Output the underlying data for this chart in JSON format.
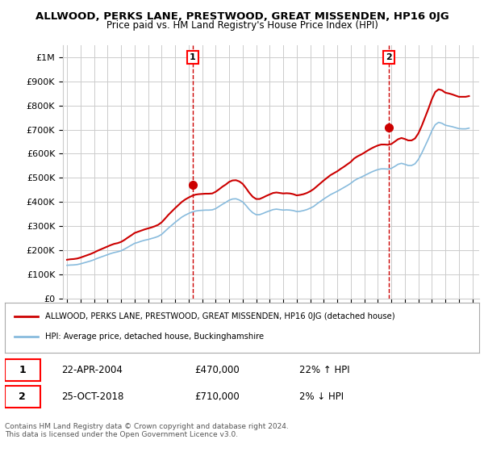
{
  "title": "ALLWOOD, PERKS LANE, PRESTWOOD, GREAT MISSENDEN, HP16 0JG",
  "subtitle": "Price paid vs. HM Land Registry's House Price Index (HPI)",
  "ylabel": "",
  "xlim_start": 1995,
  "xlim_end": 2025.5,
  "ylim": [
    0,
    1050000
  ],
  "yticks": [
    0,
    100000,
    200000,
    300000,
    400000,
    500000,
    600000,
    700000,
    800000,
    900000,
    1000000
  ],
  "ytick_labels": [
    "£0",
    "£100K",
    "£200K",
    "£300K",
    "£400K",
    "£500K",
    "£600K",
    "£700K",
    "£800K",
    "£900K",
    "£1M"
  ],
  "xticks": [
    1995,
    1996,
    1997,
    1998,
    1999,
    2000,
    2001,
    2002,
    2003,
    2004,
    2005,
    2006,
    2007,
    2008,
    2009,
    2010,
    2011,
    2012,
    2013,
    2014,
    2015,
    2016,
    2017,
    2018,
    2019,
    2020,
    2021,
    2022,
    2023,
    2024,
    2025
  ],
  "red_line_color": "#cc0000",
  "blue_line_color": "#88bbdd",
  "marker_color_red": "#cc0000",
  "marker_color_blue": "#88bbdd",
  "dashed_line_color": "#cc0000",
  "background_color": "#ffffff",
  "grid_color": "#cccccc",
  "sale1_x": 2004.31,
  "sale1_y": 470000,
  "sale2_x": 2018.81,
  "sale2_y": 710000,
  "legend_red_label": "ALLWOOD, PERKS LANE, PRESTWOOD, GREAT MISSENDEN, HP16 0JG (detached house)",
  "legend_blue_label": "HPI: Average price, detached house, Buckinghamshire",
  "annotation1_label": "1",
  "annotation2_label": "2",
  "table_row1": [
    "1",
    "22-APR-2004",
    "£470,000",
    "22% ↑ HPI"
  ],
  "table_row2": [
    "2",
    "25-OCT-2018",
    "£710,000",
    "2% ↓ HPI"
  ],
  "footnote": "Contains HM Land Registry data © Crown copyright and database right 2024.\nThis data is licensed under the Open Government Licence v3.0.",
  "hpi_years": [
    1995.0,
    1995.25,
    1995.5,
    1995.75,
    1996.0,
    1996.25,
    1996.5,
    1996.75,
    1997.0,
    1997.25,
    1997.5,
    1997.75,
    1998.0,
    1998.25,
    1998.5,
    1998.75,
    1999.0,
    1999.25,
    1999.5,
    1999.75,
    2000.0,
    2000.25,
    2000.5,
    2000.75,
    2001.0,
    2001.25,
    2001.5,
    2001.75,
    2002.0,
    2002.25,
    2002.5,
    2002.75,
    2003.0,
    2003.25,
    2003.5,
    2003.75,
    2004.0,
    2004.25,
    2004.5,
    2004.75,
    2005.0,
    2005.25,
    2005.5,
    2005.75,
    2006.0,
    2006.25,
    2006.5,
    2006.75,
    2007.0,
    2007.25,
    2007.5,
    2007.75,
    2008.0,
    2008.25,
    2008.5,
    2008.75,
    2009.0,
    2009.25,
    2009.5,
    2009.75,
    2010.0,
    2010.25,
    2010.5,
    2010.75,
    2011.0,
    2011.25,
    2011.5,
    2011.75,
    2012.0,
    2012.25,
    2012.5,
    2012.75,
    2013.0,
    2013.25,
    2013.5,
    2013.75,
    2014.0,
    2014.25,
    2014.5,
    2014.75,
    2015.0,
    2015.25,
    2015.5,
    2015.75,
    2016.0,
    2016.25,
    2016.5,
    2016.75,
    2017.0,
    2017.25,
    2017.5,
    2017.75,
    2018.0,
    2018.25,
    2018.5,
    2018.75,
    2019.0,
    2019.25,
    2019.5,
    2019.75,
    2020.0,
    2020.25,
    2020.5,
    2020.75,
    2021.0,
    2021.25,
    2021.5,
    2021.75,
    2022.0,
    2022.25,
    2022.5,
    2022.75,
    2023.0,
    2023.25,
    2023.5,
    2023.75,
    2024.0,
    2024.25,
    2024.5,
    2024.75
  ],
  "hpi_values": [
    137000,
    138000,
    138500,
    140000,
    143000,
    147000,
    151000,
    155000,
    160000,
    166000,
    171000,
    176000,
    181000,
    186000,
    190000,
    193000,
    197000,
    204000,
    212000,
    220000,
    228000,
    232000,
    237000,
    241000,
    244000,
    248000,
    252000,
    257000,
    265000,
    278000,
    291000,
    303000,
    315000,
    326000,
    337000,
    345000,
    352000,
    358000,
    362000,
    364000,
    365000,
    366000,
    366000,
    367000,
    372000,
    381000,
    390000,
    398000,
    407000,
    412000,
    413000,
    408000,
    400000,
    385000,
    368000,
    355000,
    347000,
    347000,
    352000,
    358000,
    363000,
    368000,
    370000,
    368000,
    366000,
    367000,
    366000,
    364000,
    360000,
    361000,
    364000,
    368000,
    374000,
    381000,
    392000,
    402000,
    412000,
    421000,
    430000,
    437000,
    444000,
    452000,
    460000,
    468000,
    477000,
    488000,
    496000,
    502000,
    509000,
    516000,
    523000,
    529000,
    534000,
    537000,
    537000,
    536000,
    539000,
    547000,
    556000,
    560000,
    556000,
    551000,
    551000,
    558000,
    576000,
    602000,
    632000,
    662000,
    695000,
    720000,
    730000,
    726000,
    718000,
    715000,
    712000,
    708000,
    704000,
    703000,
    703000,
    706000
  ],
  "red_years": [
    1995.0,
    1995.25,
    1995.5,
    1995.75,
    1996.0,
    1996.25,
    1996.5,
    1996.75,
    1997.0,
    1997.25,
    1997.5,
    1997.75,
    1998.0,
    1998.25,
    1998.5,
    1998.75,
    1999.0,
    1999.25,
    1999.5,
    1999.75,
    2000.0,
    2000.25,
    2000.5,
    2000.75,
    2001.0,
    2001.25,
    2001.5,
    2001.75,
    2002.0,
    2002.25,
    2002.5,
    2002.75,
    2003.0,
    2003.25,
    2003.5,
    2003.75,
    2004.0,
    2004.25,
    2004.5,
    2004.75,
    2005.0,
    2005.25,
    2005.5,
    2005.75,
    2006.0,
    2006.25,
    2006.5,
    2006.75,
    2007.0,
    2007.25,
    2007.5,
    2007.75,
    2008.0,
    2008.25,
    2008.5,
    2008.75,
    2009.0,
    2009.25,
    2009.5,
    2009.75,
    2010.0,
    2010.25,
    2010.5,
    2010.75,
    2011.0,
    2011.25,
    2011.5,
    2011.75,
    2012.0,
    2012.25,
    2012.5,
    2012.75,
    2013.0,
    2013.25,
    2013.5,
    2013.75,
    2014.0,
    2014.25,
    2014.5,
    2014.75,
    2015.0,
    2015.25,
    2015.5,
    2015.75,
    2016.0,
    2016.25,
    2016.5,
    2016.75,
    2017.0,
    2017.25,
    2017.5,
    2017.75,
    2018.0,
    2018.25,
    2018.5,
    2018.75,
    2019.0,
    2019.25,
    2019.5,
    2019.75,
    2020.0,
    2020.25,
    2020.5,
    2020.75,
    2021.0,
    2021.25,
    2021.5,
    2021.75,
    2022.0,
    2022.25,
    2022.5,
    2022.75,
    2023.0,
    2023.25,
    2023.5,
    2023.75,
    2024.0,
    2024.25,
    2024.5,
    2024.75
  ],
  "red_values": [
    160000,
    162000,
    163000,
    165000,
    169000,
    174000,
    179000,
    184000,
    190000,
    197000,
    203000,
    209000,
    215000,
    221000,
    226000,
    229000,
    234000,
    242000,
    252000,
    261000,
    271000,
    276000,
    281000,
    286000,
    290000,
    294000,
    299000,
    305000,
    315000,
    330000,
    346000,
    360000,
    374000,
    387000,
    400000,
    410000,
    418000,
    425000,
    430000,
    432000,
    433000,
    434000,
    434000,
    435000,
    442000,
    452000,
    463000,
    472000,
    483000,
    489000,
    490000,
    485000,
    475000,
    457000,
    437000,
    421000,
    412000,
    412000,
    418000,
    425000,
    431000,
    437000,
    439000,
    437000,
    435000,
    436000,
    435000,
    432000,
    427000,
    429000,
    432000,
    437000,
    444000,
    453000,
    465000,
    477000,
    489000,
    500000,
    511000,
    519000,
    527000,
    537000,
    546000,
    556000,
    566000,
    580000,
    589000,
    596000,
    604000,
    613000,
    621000,
    628000,
    634000,
    638000,
    638000,
    637000,
    640000,
    650000,
    660000,
    665000,
    661000,
    655000,
    655000,
    663000,
    684000,
    715000,
    751000,
    787000,
    826000,
    856000,
    867000,
    863000,
    853000,
    850000,
    846000,
    841000,
    836000,
    836000,
    836000,
    839000
  ]
}
